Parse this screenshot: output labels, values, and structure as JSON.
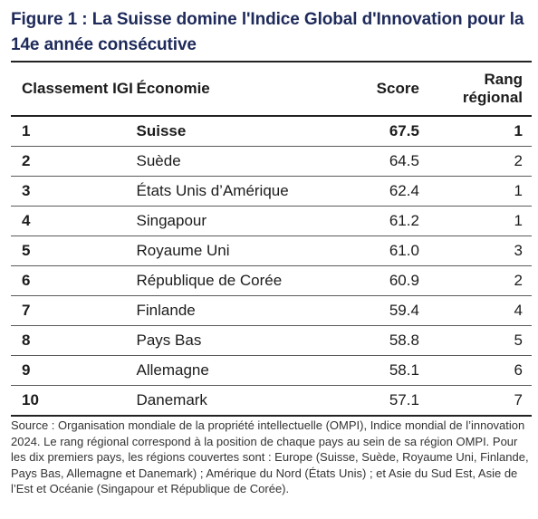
{
  "title": "Figure 1 : La Suisse domine l'Indice Global d'Innovation pour la 14e année consécutive",
  "table": {
    "headers": {
      "rank": "Classement IGI",
      "economy": "Économie",
      "score": "Score",
      "regional": "Rang régional"
    },
    "rows": [
      {
        "rank": "1",
        "economy": "Suisse",
        "score": "67.5",
        "regional": "1"
      },
      {
        "rank": "2",
        "economy": "Suède",
        "score": "64.5",
        "regional": "2"
      },
      {
        "rank": "3",
        "economy": "États Unis d’Amérique",
        "score": "62.4",
        "regional": "1"
      },
      {
        "rank": "4",
        "economy": "Singapour",
        "score": "61.2",
        "regional": "1"
      },
      {
        "rank": "5",
        "economy": "Royaume Uni",
        "score": "61.0",
        "regional": "3"
      },
      {
        "rank": "6",
        "economy": "République de Corée",
        "score": "60.9",
        "regional": "2"
      },
      {
        "rank": "7",
        "economy": "Finlande",
        "score": "59.4",
        "regional": "4"
      },
      {
        "rank": "8",
        "economy": "Pays Bas",
        "score": "58.8",
        "regional": "5"
      },
      {
        "rank": "9",
        "economy": "Allemagne",
        "score": "58.1",
        "regional": "6"
      },
      {
        "rank": "10",
        "economy": "Danemark",
        "score": "57.1",
        "regional": "7"
      }
    ]
  },
  "source": "Source : Organisation mondiale de la propriété intellectuelle (OMPI), Indice mondial de l’innovation 2024. Le rang régional correspond à la position de chaque pays au sein de sa région OMPI. Pour les dix premiers pays, les régions couvertes sont : Europe (Suisse, Suède, Royaume Uni, Finlande, Pays Bas, Allemagne et Danemark) ; Amérique du Nord (États Unis) ; et Asie du Sud Est, Asie de l’Est et Océanie (Singapour et République de Corée)."
}
